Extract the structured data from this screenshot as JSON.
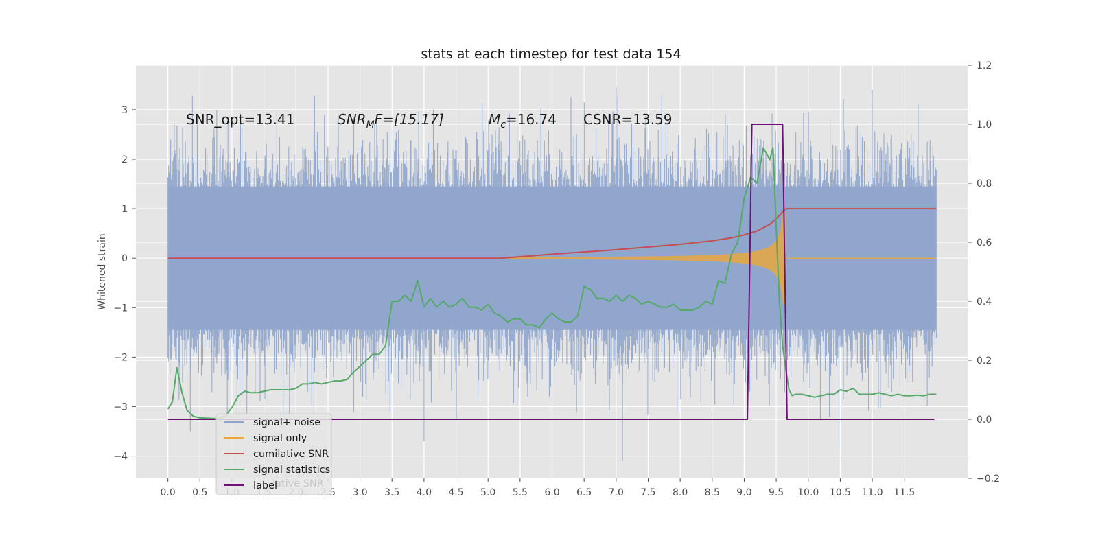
{
  "chart_data": {
    "type": "line",
    "title": "stats at each timestep for test data 154",
    "ylabel": "Whitened strain",
    "xlim": [
      -0.5,
      12.5
    ],
    "ylim": [
      -4.45,
      3.9
    ],
    "y2lim": [
      -0.2,
      1.2
    ],
    "x_ticks": [
      "0.0",
      "0.5",
      "1.0",
      "1.5",
      "2.0",
      "2.5",
      "3.0",
      "3.5",
      "4.0",
      "4.5",
      "5.0",
      "5.5",
      "6.0",
      "6.5",
      "7.0",
      "7.5",
      "8.0",
      "8.5",
      "9.0",
      "9.5",
      "10.0",
      "10.5",
      "11.0",
      "11.5"
    ],
    "y_ticks": [
      "3",
      "2",
      "1",
      "0",
      "−1",
      "−2",
      "−3",
      "−4"
    ],
    "y2_ticks": [
      "1.2",
      "1.0",
      "0.8",
      "0.6",
      "0.4",
      "0.2",
      "0.0",
      "−0.2"
    ],
    "annotations": {
      "snr_opt": "SNR_opt=13.41",
      "snr_mf_base": "SNR",
      "snr_mf_sub": "M",
      "snr_mf_rest": "F=[15.17]",
      "mc_base": "M",
      "mc_sub": "c",
      "mc_rest": "=16.74",
      "csnr": "CSNR=13.59"
    },
    "legend": {
      "placement": "lower-left",
      "entries": [
        "signal+ noise",
        "signal only",
        "cumilative SNR",
        "signal statistics",
        "label"
      ],
      "ghost_text": "lative SNR"
    },
    "colors": {
      "background": "#e5e5e5",
      "grid": "#ffffff",
      "signal_noise": "#8fa5cc",
      "signal_only": "#e8a840",
      "cumulative_snr": "#c44e52",
      "signal_statistics": "#55a868",
      "label": "#6e0f7a"
    },
    "series": [
      {
        "name": "signal+ noise",
        "kind": "noise_band",
        "t_range": [
          0,
          12.0
        ],
        "typical_envelope": [
          -1.45,
          1.45
        ],
        "extreme_range": [
          -4.1,
          3.45
        ]
      },
      {
        "name": "signal only",
        "kind": "chirp",
        "t_range": [
          5.3,
          9.65
        ],
        "peak_amplitude": 0.95,
        "cutoff": 9.65
      },
      {
        "name": "cumilative SNR",
        "axis": "left",
        "x": [
          0,
          5.2,
          6.0,
          7.0,
          8.0,
          8.5,
          8.8,
          9.0,
          9.2,
          9.4,
          9.5,
          9.58,
          9.63,
          9.66,
          12.0
        ],
        "y": [
          0,
          0,
          0.08,
          0.17,
          0.28,
          0.35,
          0.41,
          0.47,
          0.55,
          0.68,
          0.8,
          0.9,
          0.98,
          1.0,
          1.0
        ]
      },
      {
        "name": "signal statistics",
        "axis": "right",
        "x": [
          0,
          0.07,
          0.14,
          0.22,
          0.3,
          0.4,
          0.5,
          0.6,
          0.7,
          0.8,
          0.9,
          1.0,
          1.1,
          1.2,
          1.3,
          1.4,
          1.5,
          1.6,
          1.7,
          1.8,
          1.9,
          2.0,
          2.1,
          2.2,
          2.3,
          2.4,
          2.5,
          2.6,
          2.7,
          2.8,
          2.9,
          3.0,
          3.1,
          3.2,
          3.3,
          3.4,
          3.5,
          3.6,
          3.7,
          3.8,
          3.9,
          4.0,
          4.1,
          4.2,
          4.3,
          4.4,
          4.5,
          4.6,
          4.7,
          4.8,
          4.9,
          5.0,
          5.1,
          5.2,
          5.3,
          5.4,
          5.5,
          5.6,
          5.7,
          5.8,
          5.9,
          6.0,
          6.1,
          6.2,
          6.3,
          6.4,
          6.5,
          6.6,
          6.7,
          6.8,
          6.9,
          7.0,
          7.1,
          7.2,
          7.3,
          7.4,
          7.5,
          7.6,
          7.7,
          7.8,
          7.9,
          8.0,
          8.1,
          8.2,
          8.3,
          8.4,
          8.5,
          8.6,
          8.7,
          8.8,
          8.9,
          9.0,
          9.1,
          9.2,
          9.3,
          9.4,
          9.45,
          9.5,
          9.55,
          9.6,
          9.65,
          9.7,
          9.75,
          9.8,
          9.9,
          10.0,
          10.1,
          10.2,
          10.3,
          10.4,
          10.5,
          10.6,
          10.7,
          10.8,
          10.9,
          11.0,
          11.1,
          11.2,
          11.3,
          11.4,
          11.5,
          11.6,
          11.7,
          11.8,
          11.9,
          12.0
        ],
        "y": [
          0.035,
          0.06,
          0.175,
          0.09,
          0.03,
          0.01,
          0.005,
          0.004,
          0.003,
          0.003,
          0.012,
          0.04,
          0.08,
          0.095,
          0.09,
          0.09,
          0.095,
          0.1,
          0.1,
          0.1,
          0.1,
          0.105,
          0.12,
          0.12,
          0.125,
          0.12,
          0.125,
          0.13,
          0.13,
          0.135,
          0.16,
          0.18,
          0.2,
          0.22,
          0.22,
          0.25,
          0.4,
          0.4,
          0.42,
          0.4,
          0.47,
          0.38,
          0.41,
          0.38,
          0.4,
          0.38,
          0.39,
          0.41,
          0.38,
          0.38,
          0.37,
          0.39,
          0.36,
          0.35,
          0.33,
          0.34,
          0.34,
          0.32,
          0.32,
          0.31,
          0.34,
          0.36,
          0.34,
          0.33,
          0.33,
          0.35,
          0.45,
          0.44,
          0.41,
          0.41,
          0.4,
          0.42,
          0.4,
          0.42,
          0.41,
          0.39,
          0.4,
          0.39,
          0.38,
          0.38,
          0.39,
          0.37,
          0.37,
          0.37,
          0.38,
          0.4,
          0.39,
          0.47,
          0.46,
          0.56,
          0.6,
          0.75,
          0.82,
          0.8,
          0.92,
          0.88,
          0.92,
          0.65,
          0.4,
          0.25,
          0.17,
          0.1,
          0.08,
          0.085,
          0.085,
          0.08,
          0.075,
          0.08,
          0.085,
          0.085,
          0.1,
          0.095,
          0.105,
          0.085,
          0.085,
          0.085,
          0.09,
          0.085,
          0.08,
          0.085,
          0.08,
          0.08,
          0.082,
          0.08,
          0.085,
          0.085
        ]
      },
      {
        "name": "label",
        "axis": "right",
        "x": [
          0,
          9.05,
          9.12,
          9.6,
          9.67,
          11.97
        ],
        "y": [
          0,
          0,
          1,
          1,
          0,
          0
        ]
      }
    ]
  }
}
